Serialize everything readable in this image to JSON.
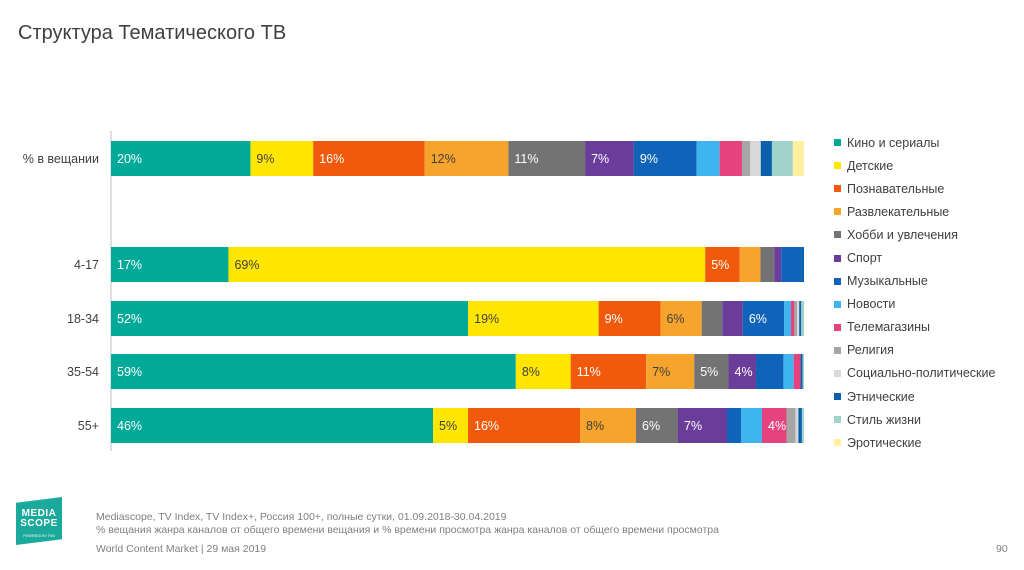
{
  "title": "Структура Тематического ТВ",
  "logo": {
    "text": "MEDIA SCOPE",
    "tagline": "POWERED BY TNS"
  },
  "footer": {
    "source": "Mediascope, TV Index, TV Index+, Россия 100+, полные сутки, 01.09.2018-30.04.2019",
    "note": "% вещания жанра каналов от общего времени вещания и % времени просмотра жанра каналов от общего времени просмотра",
    "event": "World Content Market | 29 мая 2019",
    "page": "90"
  },
  "chart_data": {
    "type": "bar",
    "orientation": "horizontal",
    "stacked": true,
    "normalized": true,
    "legend_position": "right",
    "grid": false,
    "xlim": [
      0,
      100
    ],
    "categories": [
      "% в вещании",
      "4-17",
      "18-34",
      "35-54",
      "55+"
    ],
    "series": [
      {
        "name": "Кино и сериалы",
        "color": "#00a998",
        "values": [
          20,
          17,
          52,
          59,
          46
        ],
        "labels": [
          "20%",
          "17%",
          "52%",
          "59%",
          "46%"
        ]
      },
      {
        "name": "Детские",
        "color": "#ffe600",
        "values": [
          9,
          69,
          19,
          8,
          5
        ],
        "labels": [
          "9%",
          "69%",
          "19%",
          "8%",
          "5%"
        ]
      },
      {
        "name": "Познавательные",
        "color": "#f15a0c",
        "values": [
          16,
          5,
          9,
          11,
          16
        ],
        "labels": [
          "16%",
          "5%",
          "9%",
          "11%",
          "16%"
        ]
      },
      {
        "name": "Развлекательные",
        "color": "#f7a42c",
        "values": [
          12,
          3,
          6,
          7,
          8
        ],
        "labels": [
          "12%",
          "",
          "6%",
          "7%",
          "8%"
        ]
      },
      {
        "name": "Хобби и увлечения",
        "color": "#737373",
        "values": [
          11,
          2,
          3,
          5,
          6
        ],
        "labels": [
          "11%",
          "",
          "",
          "5%",
          "6%"
        ]
      },
      {
        "name": "Спорт",
        "color": "#6a3d9a",
        "values": [
          7,
          1,
          3,
          4,
          7
        ],
        "labels": [
          "7%",
          "",
          "",
          "4%",
          "7%"
        ]
      },
      {
        "name": "Музыкальные",
        "color": "#0f63b9",
        "values": [
          9,
          3,
          6,
          4,
          2
        ],
        "labels": [
          "9%",
          "",
          "6%",
          "",
          ""
        ]
      },
      {
        "name": "Новости",
        "color": "#3fb5ef",
        "values": [
          3.3,
          0,
          1,
          1.5,
          3
        ],
        "labels": [
          "",
          "",
          "",
          "",
          ""
        ]
      },
      {
        "name": "Телемагазины",
        "color": "#e5427e",
        "values": [
          3.2,
          0,
          0.5,
          1,
          3.5
        ],
        "labels": [
          "",
          "",
          "",
          "",
          "4%"
        ]
      },
      {
        "name": "Религия",
        "color": "#a6a6a6",
        "values": [
          1.2,
          0,
          0.4,
          0,
          1.3
        ],
        "labels": [
          "",
          "",
          "",
          "",
          ""
        ]
      },
      {
        "name": "Социально-политические",
        "color": "#d9d9d9",
        "values": [
          1.5,
          0,
          0.3,
          0,
          0.4
        ],
        "labels": [
          "",
          "",
          "",
          "",
          ""
        ]
      },
      {
        "name": "Этнические",
        "color": "#0b5fad",
        "values": [
          1.6,
          0.3,
          0.3,
          0.3,
          0.5
        ],
        "labels": [
          "",
          "",
          "",
          "",
          ""
        ]
      },
      {
        "name": "Стиль жизни",
        "color": "#9fd2c8",
        "values": [
          3,
          0,
          0.4,
          0.2,
          0.3
        ],
        "labels": [
          "",
          "",
          "",
          "",
          ""
        ]
      },
      {
        "name": "Эротические",
        "color": "#fff0a0",
        "values": [
          1.6,
          0,
          0,
          0,
          0
        ],
        "labels": [
          "",
          "",
          "",
          "",
          ""
        ]
      }
    ]
  }
}
